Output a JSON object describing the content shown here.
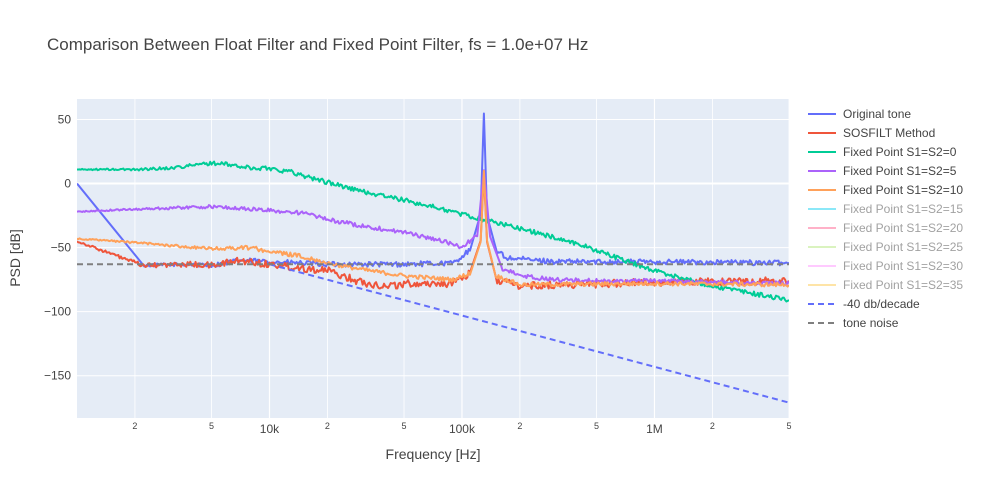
{
  "chart_data": {
    "type": "line",
    "title": "Comparison Between Float Filter and Fixed Point Filter, fs = 1.0e+07 Hz",
    "xlabel": "Frequency [Hz]",
    "ylabel": "PSD [dB]",
    "x_scale": "log",
    "xlim": [
      1000,
      5000000
    ],
    "ylim": [
      -183,
      66
    ],
    "x_ticks": [
      {
        "value": 2000,
        "label": "2"
      },
      {
        "value": 5000,
        "label": "5"
      },
      {
        "value": 10000,
        "label": "10k"
      },
      {
        "value": 20000,
        "label": "2"
      },
      {
        "value": 50000,
        "label": "5"
      },
      {
        "value": 100000,
        "label": "100k"
      },
      {
        "value": 200000,
        "label": "2"
      },
      {
        "value": 500000,
        "label": "5"
      },
      {
        "value": 1000000,
        "label": "1M"
      },
      {
        "value": 2000000,
        "label": "2"
      },
      {
        "value": 5000000,
        "label": "5"
      }
    ],
    "y_ticks": [
      {
        "value": 50,
        "label": "50"
      },
      {
        "value": 0,
        "label": "0"
      },
      {
        "value": -50,
        "label": "−50"
      },
      {
        "value": -100,
        "label": "−100"
      },
      {
        "value": -150,
        "label": "−150"
      }
    ],
    "grid": true,
    "legend_position": "right",
    "colors": {
      "plot_background": "#E5ECF6",
      "grid": "#ffffff",
      "title": "#444444",
      "axis_text": "#444444"
    },
    "series": [
      {
        "name": "Original tone",
        "color": "#636EFA",
        "style": "solid",
        "visible": true,
        "noise": 2,
        "points": [
          [
            1000,
            0
          ],
          [
            2200,
            -64
          ],
          [
            3500,
            -63
          ],
          [
            5000,
            -64
          ],
          [
            7000,
            -60
          ],
          [
            10000,
            -61
          ],
          [
            20000,
            -63
          ],
          [
            50000,
            -63
          ],
          [
            90000,
            -62
          ],
          [
            110000,
            -52
          ],
          [
            125000,
            -25
          ],
          [
            130000,
            53
          ],
          [
            135000,
            -25
          ],
          [
            150000,
            -52
          ],
          [
            170000,
            -58
          ],
          [
            300000,
            -61
          ],
          [
            1000000,
            -61
          ],
          [
            5000000,
            -62
          ]
        ]
      },
      {
        "name": "SOSFILT Method",
        "color": "#EF553B",
        "style": "solid",
        "visible": true,
        "noise": 3,
        "points": [
          [
            1000,
            -45
          ],
          [
            2200,
            -64
          ],
          [
            4000,
            -63
          ],
          [
            5000,
            -64
          ],
          [
            7000,
            -60
          ],
          [
            10000,
            -63
          ],
          [
            20000,
            -68
          ],
          [
            30000,
            -77
          ],
          [
            40000,
            -80
          ],
          [
            55000,
            -78
          ],
          [
            90000,
            -78
          ],
          [
            110000,
            -70
          ],
          [
            125000,
            -45
          ],
          [
            130000,
            8
          ],
          [
            135000,
            -45
          ],
          [
            150000,
            -75
          ],
          [
            200000,
            -80
          ],
          [
            1000000,
            -77
          ],
          [
            5000000,
            -76
          ]
        ]
      },
      {
        "name": "Fixed Point S1=S2=0",
        "color": "#00CC96",
        "style": "solid",
        "visible": true,
        "noise": 1.8,
        "points": [
          [
            1000,
            11
          ],
          [
            2000,
            11
          ],
          [
            3000,
            12
          ],
          [
            5000,
            16
          ],
          [
            6000,
            15
          ],
          [
            8000,
            12
          ],
          [
            10000,
            12
          ],
          [
            13000,
            9
          ],
          [
            16000,
            5
          ],
          [
            20000,
            1
          ],
          [
            30000,
            -6
          ],
          [
            50000,
            -13
          ],
          [
            80000,
            -20
          ],
          [
            100000,
            -24
          ],
          [
            200000,
            -35
          ],
          [
            400000,
            -47
          ],
          [
            700000,
            -60
          ],
          [
            1000000,
            -68
          ],
          [
            2000000,
            -80
          ],
          [
            5000000,
            -91
          ]
        ]
      },
      {
        "name": "Fixed Point S1=S2=5",
        "color": "#AB63FA",
        "style": "solid",
        "visible": true,
        "noise": 1.6,
        "points": [
          [
            1000,
            -22
          ],
          [
            2000,
            -20
          ],
          [
            5000,
            -18
          ],
          [
            8000,
            -20
          ],
          [
            10000,
            -21
          ],
          [
            15000,
            -23
          ],
          [
            20000,
            -28
          ],
          [
            30000,
            -33
          ],
          [
            50000,
            -38
          ],
          [
            80000,
            -45
          ],
          [
            100000,
            -50
          ],
          [
            120000,
            -40
          ],
          [
            130000,
            10
          ],
          [
            140000,
            -40
          ],
          [
            160000,
            -66
          ],
          [
            200000,
            -72
          ],
          [
            300000,
            -75
          ],
          [
            500000,
            -76
          ],
          [
            1000000,
            -76
          ],
          [
            5000000,
            -78
          ]
        ]
      },
      {
        "name": "Fixed Point S1=S2=10",
        "color": "#FFA15A",
        "style": "solid",
        "visible": true,
        "noise": 1.6,
        "points": [
          [
            1000,
            -43
          ],
          [
            2000,
            -46
          ],
          [
            5000,
            -51
          ],
          [
            8000,
            -50
          ],
          [
            10000,
            -53
          ],
          [
            15000,
            -57
          ],
          [
            20000,
            -62
          ],
          [
            30000,
            -67
          ],
          [
            50000,
            -72
          ],
          [
            90000,
            -75
          ],
          [
            110000,
            -70
          ],
          [
            125000,
            -45
          ],
          [
            130000,
            10
          ],
          [
            135000,
            -45
          ],
          [
            150000,
            -72
          ],
          [
            200000,
            -79
          ],
          [
            1000000,
            -78
          ],
          [
            5000000,
            -79
          ]
        ]
      },
      {
        "name": "Fixed Point S1=S2=15",
        "color": "#19D3F3",
        "style": "solid",
        "visible": false,
        "noise": 0,
        "points": []
      },
      {
        "name": "Fixed Point S1=S2=20",
        "color": "#FF6692",
        "style": "solid",
        "visible": false,
        "noise": 0,
        "points": []
      },
      {
        "name": "Fixed Point S1=S2=25",
        "color": "#B6E880",
        "style": "solid",
        "visible": false,
        "noise": 0,
        "points": []
      },
      {
        "name": "Fixed Point S1=S2=30",
        "color": "#FF97FF",
        "style": "solid",
        "visible": false,
        "noise": 0,
        "points": []
      },
      {
        "name": "Fixed Point S1=S2=35",
        "color": "#FECB52",
        "style": "solid",
        "visible": false,
        "noise": 0,
        "points": []
      },
      {
        "name": "-40 db/decade",
        "color": "#636EFA",
        "style": "dash",
        "visible": true,
        "noise": 0,
        "points": [
          [
            10000,
            -63
          ],
          [
            5000000,
            -171
          ]
        ]
      },
      {
        "name": "tone noise",
        "color": "#7F7F7F",
        "style": "dash",
        "visible": true,
        "noise": 0,
        "points": [
          [
            1000,
            -63
          ],
          [
            5000000,
            -63
          ]
        ]
      }
    ]
  }
}
